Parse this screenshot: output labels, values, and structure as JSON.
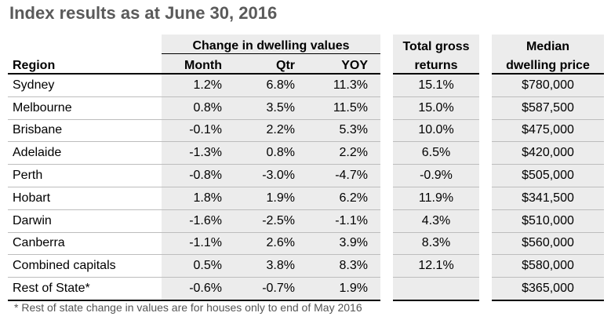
{
  "title": "Index results as at June 30, 2016",
  "headers": {
    "change_group": "Change in dwelling values",
    "region": "Region",
    "month": "Month",
    "qtr": "Qtr",
    "yoy": "YOY",
    "total_line1": "Total gross",
    "total_line2": "returns",
    "median_line1": "Median",
    "median_line2": "dwelling price"
  },
  "rows": [
    {
      "region": "Sydney",
      "month": "1.2%",
      "qtr": "6.8%",
      "yoy": "11.3%",
      "total": "15.1%",
      "median": "$780,000"
    },
    {
      "region": "Melbourne",
      "month": "0.8%",
      "qtr": "3.5%",
      "yoy": "11.5%",
      "total": "15.0%",
      "median": "$587,500"
    },
    {
      "region": "Brisbane",
      "month": "-0.1%",
      "qtr": "2.2%",
      "yoy": "5.3%",
      "total": "10.0%",
      "median": "$475,000"
    },
    {
      "region": "Adelaide",
      "month": "-1.3%",
      "qtr": "0.8%",
      "yoy": "2.2%",
      "total": "6.5%",
      "median": "$420,000"
    },
    {
      "region": "Perth",
      "month": "-0.8%",
      "qtr": "-3.0%",
      "yoy": "-4.7%",
      "total": "-0.9%",
      "median": "$505,000"
    },
    {
      "region": "Hobart",
      "month": "1.8%",
      "qtr": "1.9%",
      "yoy": "6.2%",
      "total": "11.9%",
      "median": "$341,500"
    },
    {
      "region": "Darwin",
      "month": "-1.6%",
      "qtr": "-2.5%",
      "yoy": "-1.1%",
      "total": "4.3%",
      "median": "$510,000"
    },
    {
      "region": "Canberra",
      "month": "-1.1%",
      "qtr": "2.6%",
      "yoy": "3.9%",
      "total": "8.3%",
      "median": "$560,000"
    },
    {
      "region": "Combined capitals",
      "month": "0.5%",
      "qtr": "3.8%",
      "yoy": "8.3%",
      "total": "12.1%",
      "median": "$580,000"
    },
    {
      "region": "Rest of State*",
      "month": "-0.6%",
      "qtr": "-0.7%",
      "yoy": "1.9%",
      "total": "",
      "median": "$365,000"
    }
  ],
  "footnote": "* Rest of state change in values are for houses only to end of May 2016",
  "colors": {
    "shade": "#ececec",
    "title": "#5a5a5a"
  }
}
